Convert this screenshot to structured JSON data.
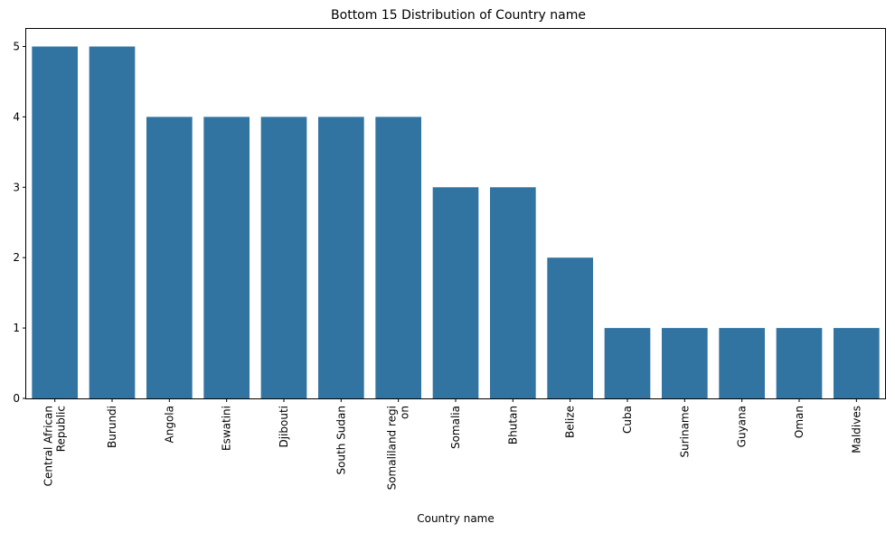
{
  "chart_data": {
    "type": "bar",
    "title": "Bottom 15 Distribution of Country name",
    "xlabel": "Country name",
    "ylabel": "",
    "categories": [
      [
        "Central African",
        "Republic"
      ],
      [
        "Burundi"
      ],
      [
        "Angola"
      ],
      [
        "Eswatini"
      ],
      [
        "Djibouti"
      ],
      [
        "South Sudan"
      ],
      [
        "Somaliland regi",
        "on"
      ],
      [
        "Somalia"
      ],
      [
        "Bhutan"
      ],
      [
        "Belize"
      ],
      [
        "Cuba"
      ],
      [
        "Suriname"
      ],
      [
        "Guyana"
      ],
      [
        "Oman"
      ],
      [
        "Maldives"
      ]
    ],
    "values": [
      5,
      5,
      4,
      4,
      4,
      4,
      4,
      3,
      3,
      2,
      1,
      1,
      1,
      1,
      1
    ],
    "ylim": [
      0,
      5.25
    ],
    "yticks": [
      0,
      1,
      2,
      3,
      4,
      5
    ],
    "grid": false,
    "bar_color": "#3274a1"
  }
}
